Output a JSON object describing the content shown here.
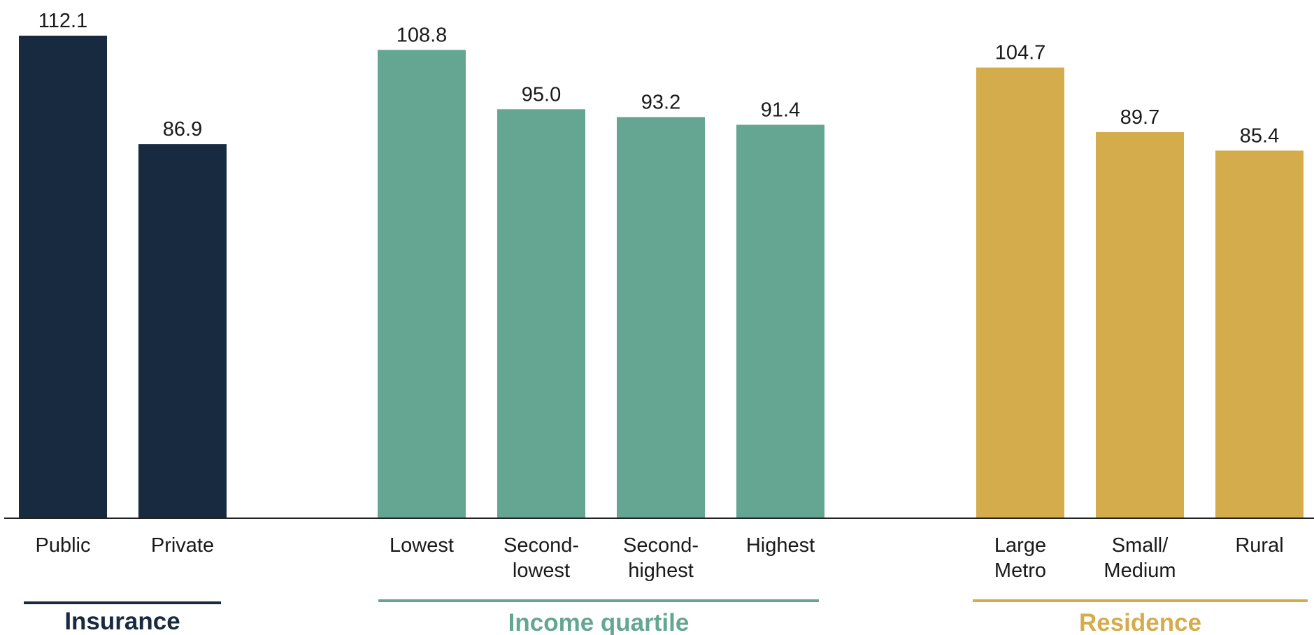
{
  "chart_data": {
    "type": "bar",
    "ylim": [
      0,
      112.1
    ],
    "grid": false,
    "groups": [
      {
        "name": "Insurance",
        "color": "#172a40",
        "bars": [
          {
            "label": [
              "Public"
            ],
            "value": 112.1,
            "value_label": "112.1"
          },
          {
            "label": [
              "Private"
            ],
            "value": 86.9,
            "value_label": "86.9"
          }
        ]
      },
      {
        "name": "Income quartile",
        "color": "#65a692",
        "bars": [
          {
            "label": [
              "Lowest"
            ],
            "value": 108.8,
            "value_label": "108.8"
          },
          {
            "label": [
              "Second-",
              "lowest"
            ],
            "value": 95.0,
            "value_label": "95.0"
          },
          {
            "label": [
              "Second-",
              "highest"
            ],
            "value": 93.2,
            "value_label": "93.2"
          },
          {
            "label": [
              "Highest"
            ],
            "value": 91.4,
            "value_label": "91.4"
          }
        ]
      },
      {
        "name": "Residence",
        "color": "#d4ac4c",
        "bars": [
          {
            "label": [
              "Large",
              "Metro"
            ],
            "value": 104.7,
            "value_label": "104.7"
          },
          {
            "label": [
              "Small/",
              "Medium"
            ],
            "value": 89.7,
            "value_label": "89.7"
          },
          {
            "label": [
              "Rural"
            ],
            "value": 85.4,
            "value_label": "85.4"
          }
        ]
      }
    ]
  }
}
